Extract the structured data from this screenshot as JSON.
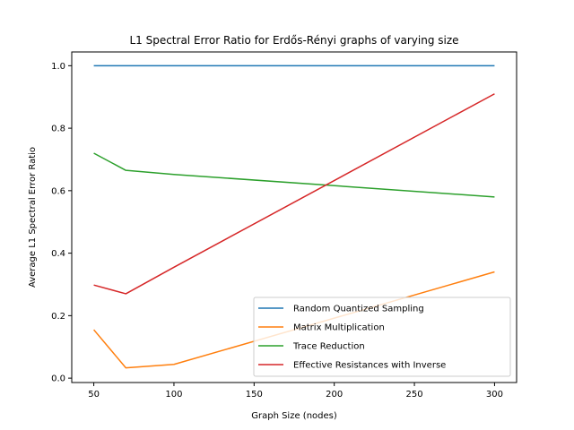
{
  "chart_data": {
    "type": "line",
    "title": "L1 Spectral Error Ratio for Erdős-Rényi graphs of varying size",
    "xlabel": "Graph Size (nodes)",
    "ylabel": "Average L1 Spectral Error Ratio",
    "xlim": [
      36.25,
      313.75
    ],
    "ylim": [
      -0.014,
      1.044
    ],
    "xticks": [
      50,
      100,
      150,
      200,
      250,
      300
    ],
    "yticks": [
      0.0,
      0.2,
      0.4,
      0.6,
      0.8,
      1.0
    ],
    "xtick_labels": [
      "50",
      "100",
      "150",
      "200",
      "250",
      "300"
    ],
    "ytick_labels": [
      "0.0",
      "0.2",
      "0.4",
      "0.6",
      "0.8",
      "1.0"
    ],
    "legend_position": "lower-right",
    "x": [
      50,
      70,
      100,
      300
    ],
    "series": [
      {
        "name": "Random Quantized Sampling",
        "color": "#1f77b4",
        "values": [
          1.0,
          1.0,
          1.0,
          1.0
        ]
      },
      {
        "name": "Matrix Multiplication",
        "color": "#ff7f0e",
        "values": [
          0.155,
          0.033,
          0.044,
          0.34
        ]
      },
      {
        "name": "Trace Reduction",
        "color": "#2ca02c",
        "values": [
          0.72,
          0.665,
          0.652,
          0.58
        ]
      },
      {
        "name": "Effective Resistances with Inverse",
        "color": "#d62728",
        "values": [
          0.298,
          0.27,
          0.355,
          0.91
        ]
      }
    ]
  }
}
